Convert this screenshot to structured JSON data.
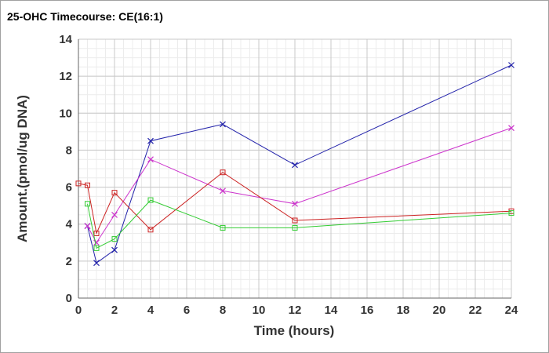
{
  "chart_data": {
    "type": "line",
    "title": "25-OHC Timecourse: CE(16:1)",
    "xlabel": "Time (hours)",
    "ylabel": "Amount.(pmol/ug DNA)",
    "xlim": [
      0,
      24
    ],
    "ylim": [
      0,
      14
    ],
    "xticks": [
      0,
      2,
      4,
      6,
      8,
      10,
      12,
      14,
      16,
      18,
      20,
      22,
      24
    ],
    "yticks": [
      0,
      2,
      4,
      6,
      8,
      10,
      12,
      14
    ],
    "grid": true,
    "series": [
      {
        "color": "#2222aa",
        "marker": "x",
        "points": [
          [
            0.5,
            3.9
          ],
          [
            1,
            1.9
          ],
          [
            2,
            2.6
          ],
          [
            4,
            8.5
          ],
          [
            8,
            9.4
          ],
          [
            12,
            7.2
          ],
          [
            24,
            12.6
          ]
        ]
      },
      {
        "color": "#cc33cc",
        "marker": "x",
        "points": [
          [
            0.5,
            3.9
          ],
          [
            1,
            3.0
          ],
          [
            2,
            4.5
          ],
          [
            4,
            7.5
          ],
          [
            8,
            5.8
          ],
          [
            12,
            5.1
          ],
          [
            24,
            9.2
          ]
        ]
      },
      {
        "color": "#cc2222",
        "marker": "square",
        "points": [
          [
            0,
            6.2
          ],
          [
            0.5,
            6.1
          ],
          [
            1,
            3.5
          ],
          [
            2,
            5.7
          ],
          [
            4,
            3.7
          ],
          [
            8,
            6.8
          ],
          [
            12,
            4.2
          ],
          [
            24,
            4.7
          ]
        ]
      },
      {
        "color": "#33cc33",
        "marker": "square",
        "points": [
          [
            0.5,
            5.1
          ],
          [
            1,
            2.7
          ],
          [
            2,
            3.2
          ],
          [
            4,
            5.3
          ],
          [
            8,
            3.8
          ],
          [
            12,
            3.8
          ],
          [
            24,
            4.6
          ]
        ]
      }
    ]
  }
}
